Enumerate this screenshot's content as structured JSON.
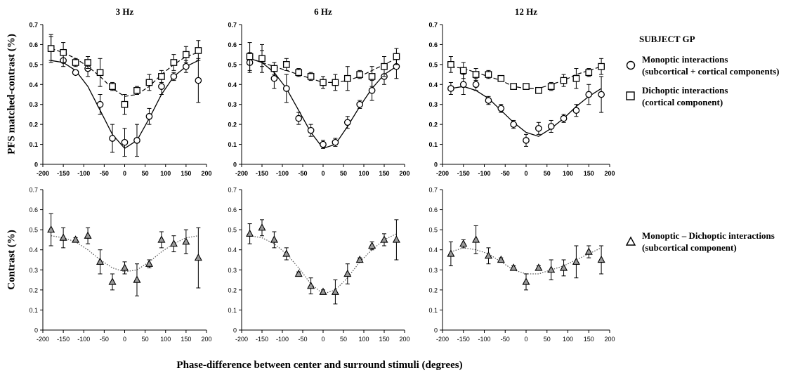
{
  "figure": {
    "ylabel_top": "PFS matched-contrast (%)",
    "ylabel_bottom": "Contrast (%)",
    "xlabel": "Phase-difference between center and surround stimuli (degrees)"
  },
  "legend": {
    "title": "SUBJECT GP",
    "monoptic": {
      "line1": "Monoptic interactions",
      "line2": "(subcortical + cortical components)"
    },
    "dichoptic": {
      "line1": "Dichoptic interactions",
      "line2": "(cortical component)"
    },
    "difference": {
      "line1": "Monoptic – Dichoptic interactions",
      "line2": "(subcortical component)"
    }
  },
  "chart_data": [
    {
      "type": "scatter",
      "title": "3 Hz",
      "xlim": [
        -200,
        200
      ],
      "ylim": [
        0,
        0.7
      ],
      "x": [
        -180,
        -150,
        -120,
        -90,
        -60,
        -30,
        0,
        30,
        60,
        90,
        120,
        150,
        180
      ],
      "series": [
        {
          "name": "Monoptic interactions",
          "marker": "circle",
          "values": [
            0.58,
            0.52,
            0.46,
            0.48,
            0.3,
            0.13,
            0.11,
            0.12,
            0.24,
            0.39,
            0.44,
            0.49,
            0.42
          ],
          "errors": [
            0.06,
            0.03,
            0.01,
            0.04,
            0.05,
            0.07,
            0.07,
            0.08,
            0.04,
            0.04,
            0.02,
            0.03,
            0.11
          ],
          "fit": [
            [
              -180,
              0.52
            ],
            [
              -150,
              0.51
            ],
            [
              -120,
              0.47
            ],
            [
              -90,
              0.39
            ],
            [
              -60,
              0.27
            ],
            [
              -30,
              0.15
            ],
            [
              0,
              0.08
            ],
            [
              30,
              0.12
            ],
            [
              60,
              0.23
            ],
            [
              90,
              0.35
            ],
            [
              120,
              0.44
            ],
            [
              150,
              0.49
            ],
            [
              180,
              0.52
            ]
          ]
        },
        {
          "name": "Dichoptic interactions",
          "marker": "square",
          "values": [
            0.58,
            0.56,
            0.51,
            0.51,
            0.46,
            0.39,
            0.3,
            0.37,
            0.41,
            0.44,
            0.51,
            0.55,
            0.57
          ],
          "errors": [
            0.07,
            0.05,
            0.02,
            0.03,
            0.07,
            0.02,
            0.05,
            0.02,
            0.04,
            0.03,
            0.04,
            0.04,
            0.05
          ],
          "fit": [
            [
              -180,
              0.58
            ],
            [
              -150,
              0.56
            ],
            [
              -120,
              0.53
            ],
            [
              -90,
              0.49
            ],
            [
              -60,
              0.44
            ],
            [
              -30,
              0.38
            ],
            [
              0,
              0.34
            ],
            [
              30,
              0.35
            ],
            [
              60,
              0.39
            ],
            [
              90,
              0.45
            ],
            [
              120,
              0.5
            ],
            [
              150,
              0.54
            ],
            [
              180,
              0.56
            ]
          ]
        }
      ]
    },
    {
      "type": "scatter",
      "title": "6 Hz",
      "xlim": [
        -200,
        200
      ],
      "ylim": [
        0,
        0.7
      ],
      "x": [
        -180,
        -150,
        -120,
        -90,
        -60,
        -30,
        0,
        30,
        60,
        90,
        120,
        150,
        180
      ],
      "series": [
        {
          "name": "Monoptic interactions",
          "marker": "circle",
          "values": [
            0.51,
            0.53,
            0.43,
            0.38,
            0.23,
            0.17,
            0.1,
            0.11,
            0.21,
            0.3,
            0.37,
            0.44,
            0.49
          ],
          "errors": [
            0.05,
            0.04,
            0.05,
            0.07,
            0.03,
            0.03,
            0.02,
            0.02,
            0.03,
            0.02,
            0.05,
            0.04,
            0.06
          ],
          "fit": [
            [
              -180,
              0.53
            ],
            [
              -150,
              0.51
            ],
            [
              -120,
              0.46
            ],
            [
              -90,
              0.38
            ],
            [
              -60,
              0.27
            ],
            [
              -30,
              0.16
            ],
            [
              0,
              0.08
            ],
            [
              30,
              0.1
            ],
            [
              60,
              0.19
            ],
            [
              90,
              0.29
            ],
            [
              120,
              0.38
            ],
            [
              150,
              0.45
            ],
            [
              180,
              0.49
            ]
          ]
        },
        {
          "name": "Dichoptic interactions",
          "marker": "square",
          "values": [
            0.54,
            0.53,
            0.48,
            0.5,
            0.46,
            0.44,
            0.41,
            0.41,
            0.43,
            0.45,
            0.44,
            0.49,
            0.54
          ],
          "errors": [
            0.07,
            0.07,
            0.03,
            0.03,
            0.02,
            0.02,
            0.03,
            0.04,
            0.06,
            0.02,
            0.05,
            0.05,
            0.04
          ],
          "fit": [
            [
              -180,
              0.53
            ],
            [
              -150,
              0.51
            ],
            [
              -120,
              0.49
            ],
            [
              -90,
              0.47
            ],
            [
              -60,
              0.45
            ],
            [
              -30,
              0.43
            ],
            [
              0,
              0.41
            ],
            [
              30,
              0.41
            ],
            [
              60,
              0.42
            ],
            [
              90,
              0.44
            ],
            [
              120,
              0.47
            ],
            [
              150,
              0.5
            ],
            [
              180,
              0.53
            ]
          ]
        }
      ]
    },
    {
      "type": "scatter",
      "title": "12 Hz",
      "xlim": [
        -200,
        200
      ],
      "ylim": [
        0,
        0.7
      ],
      "x": [
        -180,
        -150,
        -120,
        -90,
        -60,
        -30,
        0,
        30,
        60,
        90,
        120,
        150,
        180
      ],
      "series": [
        {
          "name": "Monoptic interactions",
          "marker": "circle",
          "values": [
            0.38,
            0.4,
            0.4,
            0.32,
            0.28,
            0.2,
            0.12,
            0.18,
            0.19,
            0.23,
            0.27,
            0.35,
            0.35
          ],
          "errors": [
            0.03,
            0.05,
            0.03,
            0.02,
            0.02,
            0.02,
            0.03,
            0.03,
            0.03,
            0.02,
            0.03,
            0.05,
            0.09
          ],
          "fit": [
            [
              -180,
              0.38
            ],
            [
              -150,
              0.39
            ],
            [
              -120,
              0.37
            ],
            [
              -90,
              0.33
            ],
            [
              -60,
              0.27
            ],
            [
              -30,
              0.21
            ],
            [
              0,
              0.16
            ],
            [
              30,
              0.14
            ],
            [
              60,
              0.18
            ],
            [
              90,
              0.23
            ],
            [
              120,
              0.29
            ],
            [
              150,
              0.34
            ],
            [
              180,
              0.38
            ]
          ]
        },
        {
          "name": "Dichoptic interactions",
          "marker": "square",
          "values": [
            0.5,
            0.47,
            0.45,
            0.45,
            0.43,
            0.39,
            0.39,
            0.37,
            0.39,
            0.42,
            0.43,
            0.46,
            0.49
          ],
          "errors": [
            0.04,
            0.04,
            0.03,
            0.02,
            0.01,
            0.01,
            0.01,
            0.01,
            0.02,
            0.03,
            0.05,
            0.02,
            0.04
          ],
          "fit": [
            [
              -180,
              0.49
            ],
            [
              -150,
              0.48
            ],
            [
              -120,
              0.46
            ],
            [
              -90,
              0.44
            ],
            [
              -60,
              0.42
            ],
            [
              -30,
              0.39
            ],
            [
              0,
              0.38
            ],
            [
              30,
              0.38
            ],
            [
              60,
              0.4
            ],
            [
              90,
              0.42
            ],
            [
              120,
              0.45
            ],
            [
              150,
              0.47
            ],
            [
              180,
              0.49
            ]
          ]
        }
      ]
    },
    {
      "type": "scatter",
      "title": "",
      "xlim": [
        -200,
        200
      ],
      "ylim": [
        0,
        0.7
      ],
      "x": [
        -180,
        -150,
        -120,
        -90,
        -60,
        -30,
        0,
        30,
        60,
        90,
        120,
        150,
        180
      ],
      "series": [
        {
          "name": "Monoptic – Dichoptic interactions",
          "marker": "triangle",
          "values": [
            0.5,
            0.46,
            0.45,
            0.47,
            0.34,
            0.24,
            0.31,
            0.25,
            0.33,
            0.45,
            0.43,
            0.44,
            0.36
          ],
          "errors": [
            0.08,
            0.05,
            0.01,
            0.04,
            0.06,
            0.04,
            0.03,
            0.08,
            0.02,
            0.04,
            0.04,
            0.06,
            0.15
          ],
          "fit": [
            [
              -180,
              0.47
            ],
            [
              -150,
              0.46
            ],
            [
              -120,
              0.44
            ],
            [
              -90,
              0.4
            ],
            [
              -60,
              0.35
            ],
            [
              -30,
              0.31
            ],
            [
              0,
              0.29
            ],
            [
              30,
              0.3
            ],
            [
              60,
              0.34
            ],
            [
              90,
              0.39
            ],
            [
              120,
              0.43
            ],
            [
              150,
              0.46
            ],
            [
              180,
              0.47
            ]
          ]
        }
      ]
    },
    {
      "type": "scatter",
      "title": "",
      "xlim": [
        -200,
        200
      ],
      "ylim": [
        0,
        0.7
      ],
      "x": [
        -180,
        -150,
        -120,
        -90,
        -60,
        -30,
        0,
        30,
        60,
        90,
        120,
        150,
        180
      ],
      "series": [
        {
          "name": "Monoptic – Dichoptic interactions",
          "marker": "triangle",
          "values": [
            0.48,
            0.51,
            0.45,
            0.38,
            0.28,
            0.22,
            0.19,
            0.19,
            0.28,
            0.35,
            0.42,
            0.45,
            0.45
          ],
          "errors": [
            0.05,
            0.04,
            0.04,
            0.03,
            0.01,
            0.04,
            0.01,
            0.06,
            0.05,
            0.01,
            0.02,
            0.03,
            0.1
          ],
          "fit": [
            [
              -180,
              0.47
            ],
            [
              -150,
              0.46
            ],
            [
              -120,
              0.43
            ],
            [
              -90,
              0.38
            ],
            [
              -60,
              0.31
            ],
            [
              -30,
              0.23
            ],
            [
              0,
              0.18
            ],
            [
              30,
              0.2
            ],
            [
              60,
              0.26
            ],
            [
              90,
              0.34
            ],
            [
              120,
              0.4
            ],
            [
              150,
              0.45
            ],
            [
              180,
              0.48
            ]
          ]
        }
      ]
    },
    {
      "type": "scatter",
      "title": "",
      "xlim": [
        -200,
        200
      ],
      "ylim": [
        0,
        0.7
      ],
      "x": [
        -180,
        -150,
        -120,
        -90,
        -60,
        -30,
        0,
        30,
        60,
        90,
        120,
        150,
        180
      ],
      "series": [
        {
          "name": "Monoptic – Dichoptic interactions",
          "marker": "triangle",
          "values": [
            0.38,
            0.43,
            0.45,
            0.37,
            0.35,
            0.31,
            0.24,
            0.31,
            0.3,
            0.31,
            0.34,
            0.39,
            0.35
          ],
          "errors": [
            0.06,
            0.02,
            0.07,
            0.04,
            0.01,
            0.01,
            0.04,
            0.01,
            0.05,
            0.04,
            0.08,
            0.03,
            0.07
          ],
          "fit": [
            [
              -180,
              0.39
            ],
            [
              -150,
              0.41
            ],
            [
              -120,
              0.4
            ],
            [
              -90,
              0.38
            ],
            [
              -60,
              0.34
            ],
            [
              -30,
              0.3
            ],
            [
              0,
              0.28
            ],
            [
              30,
              0.28
            ],
            [
              60,
              0.3
            ],
            [
              90,
              0.32
            ],
            [
              120,
              0.35
            ],
            [
              150,
              0.38
            ],
            [
              180,
              0.41
            ]
          ]
        }
      ]
    }
  ]
}
